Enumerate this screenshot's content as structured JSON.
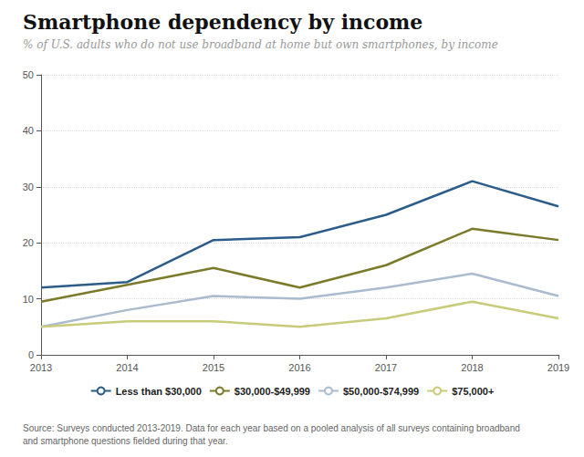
{
  "chart_data": {
    "type": "line",
    "title": "Smartphone dependency by income",
    "subtitle": "% of U.S. adults who do not use broadband at home but own smartphones, by income",
    "annotations": [
      "Source: Surveys conducted 2013-2019. Data for each year based on a pooled analysis of all surveys containing broadband\nand smartphone questions fielded during that year."
    ],
    "x": [
      2013,
      2014,
      2015,
      2016,
      2017,
      2018,
      2019
    ],
    "series": [
      {
        "name": "Less than $30,000",
        "color": "#2b5c8a",
        "values": [
          12,
          13,
          20.5,
          21,
          25,
          31,
          26.5
        ]
      },
      {
        "name": "$30,000-$49,999",
        "color": "#7a7a2a",
        "values": [
          9.5,
          12.5,
          15.5,
          12,
          16,
          22.5,
          20.5
        ]
      },
      {
        "name": "$50,000-$74,999",
        "color": "#aabbd0",
        "values": [
          5,
          8,
          10.5,
          10,
          12,
          14.5,
          10.5
        ]
      },
      {
        "name": "$75,000+",
        "color": "#c8cb7a",
        "values": [
          5,
          6,
          6,
          5,
          6.5,
          9.5,
          6.5
        ]
      }
    ],
    "xlim": [
      2013,
      2019
    ],
    "xticks": [
      2013,
      2014,
      2015,
      2016,
      2017,
      2018,
      2019
    ],
    "ylim": [
      0,
      50
    ],
    "yticks": [
      0,
      10,
      20,
      30,
      40,
      50
    ],
    "grid": true,
    "legend": "bottom"
  }
}
